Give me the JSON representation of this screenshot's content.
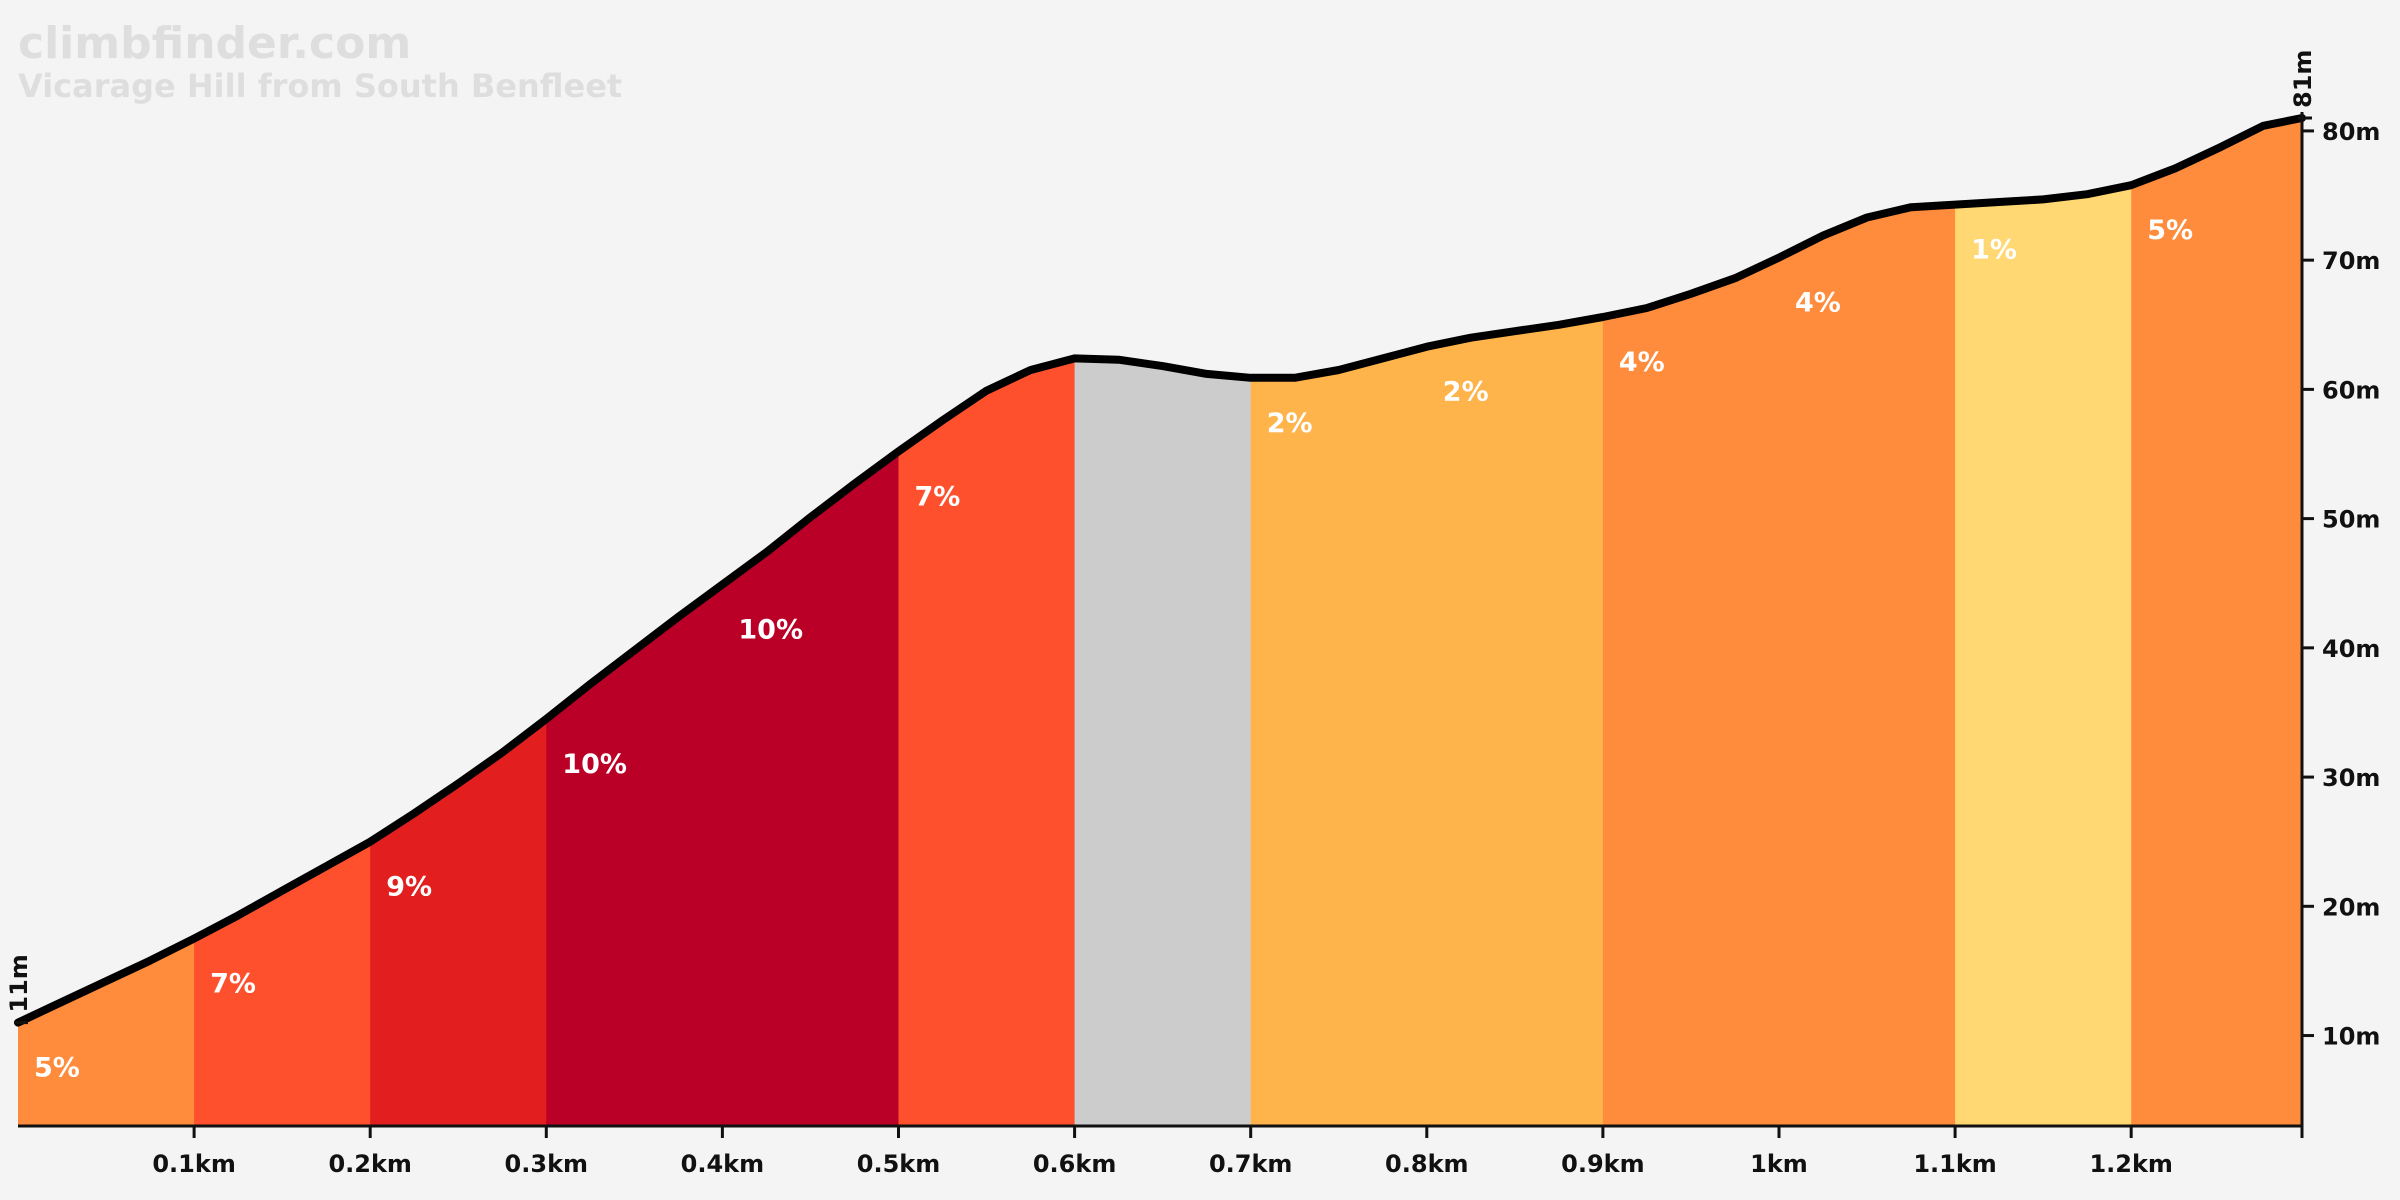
{
  "site_name": "climbfinder.com",
  "climb_name": "Vicarage Hill from South Benfleet",
  "chart_data": {
    "type": "area",
    "x_unit": "km",
    "y_unit": "m",
    "xlim": [
      0,
      1.3
    ],
    "ylim": [
      3,
      81
    ],
    "x_ticks": [
      {
        "value": 0.1,
        "label": "0.1km"
      },
      {
        "value": 0.2,
        "label": "0.2km"
      },
      {
        "value": 0.3,
        "label": "0.3km"
      },
      {
        "value": 0.4,
        "label": "0.4km"
      },
      {
        "value": 0.5,
        "label": "0.5km"
      },
      {
        "value": 0.6,
        "label": "0.6km"
      },
      {
        "value": 0.7,
        "label": "0.7km"
      },
      {
        "value": 0.8,
        "label": "0.8km"
      },
      {
        "value": 0.9,
        "label": "0.9km"
      },
      {
        "value": 1.0,
        "label": "1km"
      },
      {
        "value": 1.1,
        "label": "1.1km"
      },
      {
        "value": 1.2,
        "label": "1.2km"
      }
    ],
    "y_ticks": [
      {
        "value": 10,
        "label": "10m"
      },
      {
        "value": 20,
        "label": "20m"
      },
      {
        "value": 30,
        "label": "30m"
      },
      {
        "value": 40,
        "label": "40m"
      },
      {
        "value": 50,
        "label": "50m"
      },
      {
        "value": 60,
        "label": "60m"
      },
      {
        "value": 70,
        "label": "70m"
      },
      {
        "value": 80,
        "label": "80m"
      }
    ],
    "start_label": "11m",
    "end_label": "81m",
    "profile": [
      [
        0,
        11
      ],
      [
        0.025,
        12.6
      ],
      [
        0.05,
        14.2
      ],
      [
        0.075,
        15.8
      ],
      [
        0.1,
        17.5
      ],
      [
        0.125,
        19.3
      ],
      [
        0.15,
        21.2
      ],
      [
        0.175,
        23.1
      ],
      [
        0.2,
        25.0
      ],
      [
        0.225,
        27.2
      ],
      [
        0.25,
        29.5
      ],
      [
        0.275,
        31.9
      ],
      [
        0.3,
        34.5
      ],
      [
        0.325,
        37.2
      ],
      [
        0.35,
        39.8
      ],
      [
        0.375,
        42.4
      ],
      [
        0.4,
        44.9
      ],
      [
        0.425,
        47.4
      ],
      [
        0.45,
        50.1
      ],
      [
        0.475,
        52.7
      ],
      [
        0.5,
        55.2
      ],
      [
        0.525,
        57.6
      ],
      [
        0.55,
        59.9
      ],
      [
        0.575,
        61.5
      ],
      [
        0.6,
        62.4
      ],
      [
        0.625,
        62.3
      ],
      [
        0.65,
        61.8
      ],
      [
        0.675,
        61.2
      ],
      [
        0.7,
        60.9
      ],
      [
        0.725,
        60.9
      ],
      [
        0.75,
        61.5
      ],
      [
        0.775,
        62.4
      ],
      [
        0.8,
        63.3
      ],
      [
        0.825,
        64.0
      ],
      [
        0.85,
        64.5
      ],
      [
        0.875,
        65.0
      ],
      [
        0.9,
        65.6
      ],
      [
        0.925,
        66.3
      ],
      [
        0.95,
        67.4
      ],
      [
        0.975,
        68.6
      ],
      [
        1.0,
        70.2
      ],
      [
        1.025,
        71.9
      ],
      [
        1.05,
        73.3
      ],
      [
        1.075,
        74.1
      ],
      [
        1.1,
        74.3
      ],
      [
        1.125,
        74.5
      ],
      [
        1.15,
        74.7
      ],
      [
        1.175,
        75.1
      ],
      [
        1.2,
        75.8
      ],
      [
        1.225,
        77.1
      ],
      [
        1.25,
        78.7
      ],
      [
        1.275,
        80.4
      ],
      [
        1.297,
        81.0
      ]
    ],
    "segments": [
      {
        "start": 0.0,
        "end": 0.1,
        "grade": "5%",
        "color": "#ff8c3c"
      },
      {
        "start": 0.1,
        "end": 0.2,
        "grade": "7%",
        "color": "#ff502d"
      },
      {
        "start": 0.2,
        "end": 0.3,
        "grade": "9%",
        "color": "#e21e1e"
      },
      {
        "start": 0.3,
        "end": 0.4,
        "grade": "10%",
        "color": "#bb0027"
      },
      {
        "start": 0.4,
        "end": 0.5,
        "grade": "10%",
        "color": "#bb0027"
      },
      {
        "start": 0.5,
        "end": 0.6,
        "grade": "7%",
        "color": "#ff502d"
      },
      {
        "start": 0.6,
        "end": 0.7,
        "grade": "",
        "color": "#cccccc"
      },
      {
        "start": 0.7,
        "end": 0.8,
        "grade": "2%",
        "color": "#ffb34b"
      },
      {
        "start": 0.8,
        "end": 0.9,
        "grade": "2%",
        "color": "#ffb34b"
      },
      {
        "start": 0.9,
        "end": 1.0,
        "grade": "4%",
        "color": "#ff8c3c"
      },
      {
        "start": 1.0,
        "end": 1.1,
        "grade": "4%",
        "color": "#ff8c3c"
      },
      {
        "start": 1.1,
        "end": 1.2,
        "grade": "1%",
        "color": "#ffd873"
      },
      {
        "start": 1.2,
        "end": 1.297,
        "grade": "5%",
        "color": "#ff8c3c"
      }
    ],
    "line_color": "#000000"
  }
}
